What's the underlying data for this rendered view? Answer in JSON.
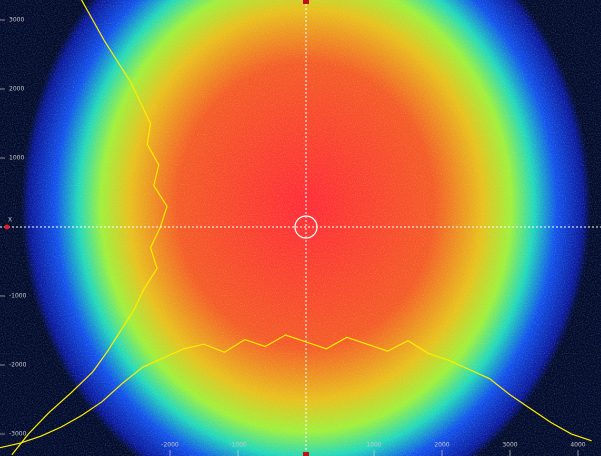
{
  "axes": {
    "crosshair_label": "X",
    "xlim": [
      -4500,
      4300
    ],
    "ylim": [
      -3300,
      3300
    ],
    "xticks": [
      -2000,
      -1000,
      1000,
      2000,
      3000,
      4000
    ],
    "yticks": [
      3000,
      2000,
      1000,
      -1000,
      -2000,
      -3000
    ]
  },
  "horizontal_profile": {
    "color": "#ffee00",
    "ylim": [
      0,
      100
    ],
    "x": [
      -4500,
      -4200,
      -3900,
      -3600,
      -3300,
      -3000,
      -2700,
      -2400,
      -2100,
      -1800,
      -1500,
      -1200,
      -900,
      -600,
      -300,
      0,
      300,
      600,
      900,
      1200,
      1500,
      1800,
      2100,
      2400,
      2700,
      3000,
      3300,
      3600,
      3900,
      4200
    ],
    "values": [
      2,
      6,
      12,
      20,
      30,
      42,
      58,
      72,
      80,
      88,
      92,
      85,
      96,
      90,
      100,
      94,
      88,
      98,
      92,
      86,
      95,
      84,
      78,
      70,
      62,
      48,
      36,
      24,
      14,
      8
    ]
  },
  "vertical_profile": {
    "color": "#ffee00",
    "xlim": [
      0,
      100
    ],
    "y": [
      3300,
      3000,
      2700,
      2400,
      2100,
      1800,
      1500,
      1200,
      900,
      600,
      300,
      0,
      -300,
      -600,
      -900,
      -1200,
      -1500,
      -1800,
      -2100,
      -2400,
      -2700,
      -3000,
      -3300
    ],
    "values": [
      48,
      55,
      62,
      70,
      78,
      84,
      90,
      88,
      95,
      92,
      100,
      96,
      90,
      94,
      86,
      80,
      72,
      64,
      55,
      42,
      28,
      16,
      6
    ]
  }
}
